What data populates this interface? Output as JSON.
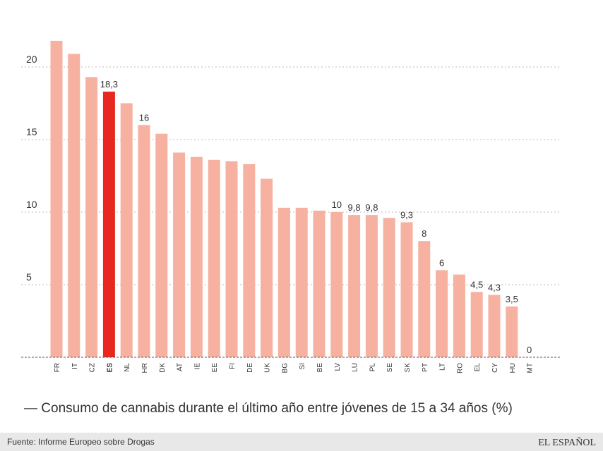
{
  "chart_data": {
    "type": "bar",
    "title": "— Consumo de cannabis durante el último año entre jóvenes de 15 a 34 años (%)",
    "source": "Fuente: Informe Europeo sobre Drogas",
    "brand": "EL ESPAÑOL",
    "categories": [
      "FR",
      "IT",
      "CZ",
      "ES",
      "NL",
      "HR",
      "DK",
      "AT",
      "IE",
      "EE",
      "FI",
      "DE",
      "UK",
      "BG",
      "SI",
      "BE",
      "LV",
      "LU",
      "PL",
      "SE",
      "SK",
      "PT",
      "LT",
      "RO",
      "EL",
      "CY",
      "HU",
      "MT"
    ],
    "values": [
      21.8,
      20.9,
      19.3,
      18.3,
      17.5,
      16,
      15.4,
      14.1,
      13.8,
      13.6,
      13.5,
      13.3,
      12.3,
      10.3,
      10.3,
      10.1,
      10,
      9.8,
      9.8,
      9.6,
      9.3,
      8,
      6,
      5.7,
      4.5,
      4.3,
      3.5,
      0
    ],
    "value_labels": [
      null,
      null,
      null,
      "18,3",
      null,
      "16",
      null,
      null,
      null,
      null,
      null,
      null,
      null,
      null,
      null,
      null,
      "10",
      "9,8",
      "9,8",
      null,
      "9,3",
      "8",
      "6",
      null,
      "4,5",
      "4,3",
      "3,5",
      "0"
    ],
    "color": "#f6b1a0",
    "highlight": "ES",
    "highlight_color": "#e8281e",
    "ylim": [
      0,
      22
    ],
    "yticks": [
      5,
      10,
      15,
      20
    ],
    "grid": true
  }
}
